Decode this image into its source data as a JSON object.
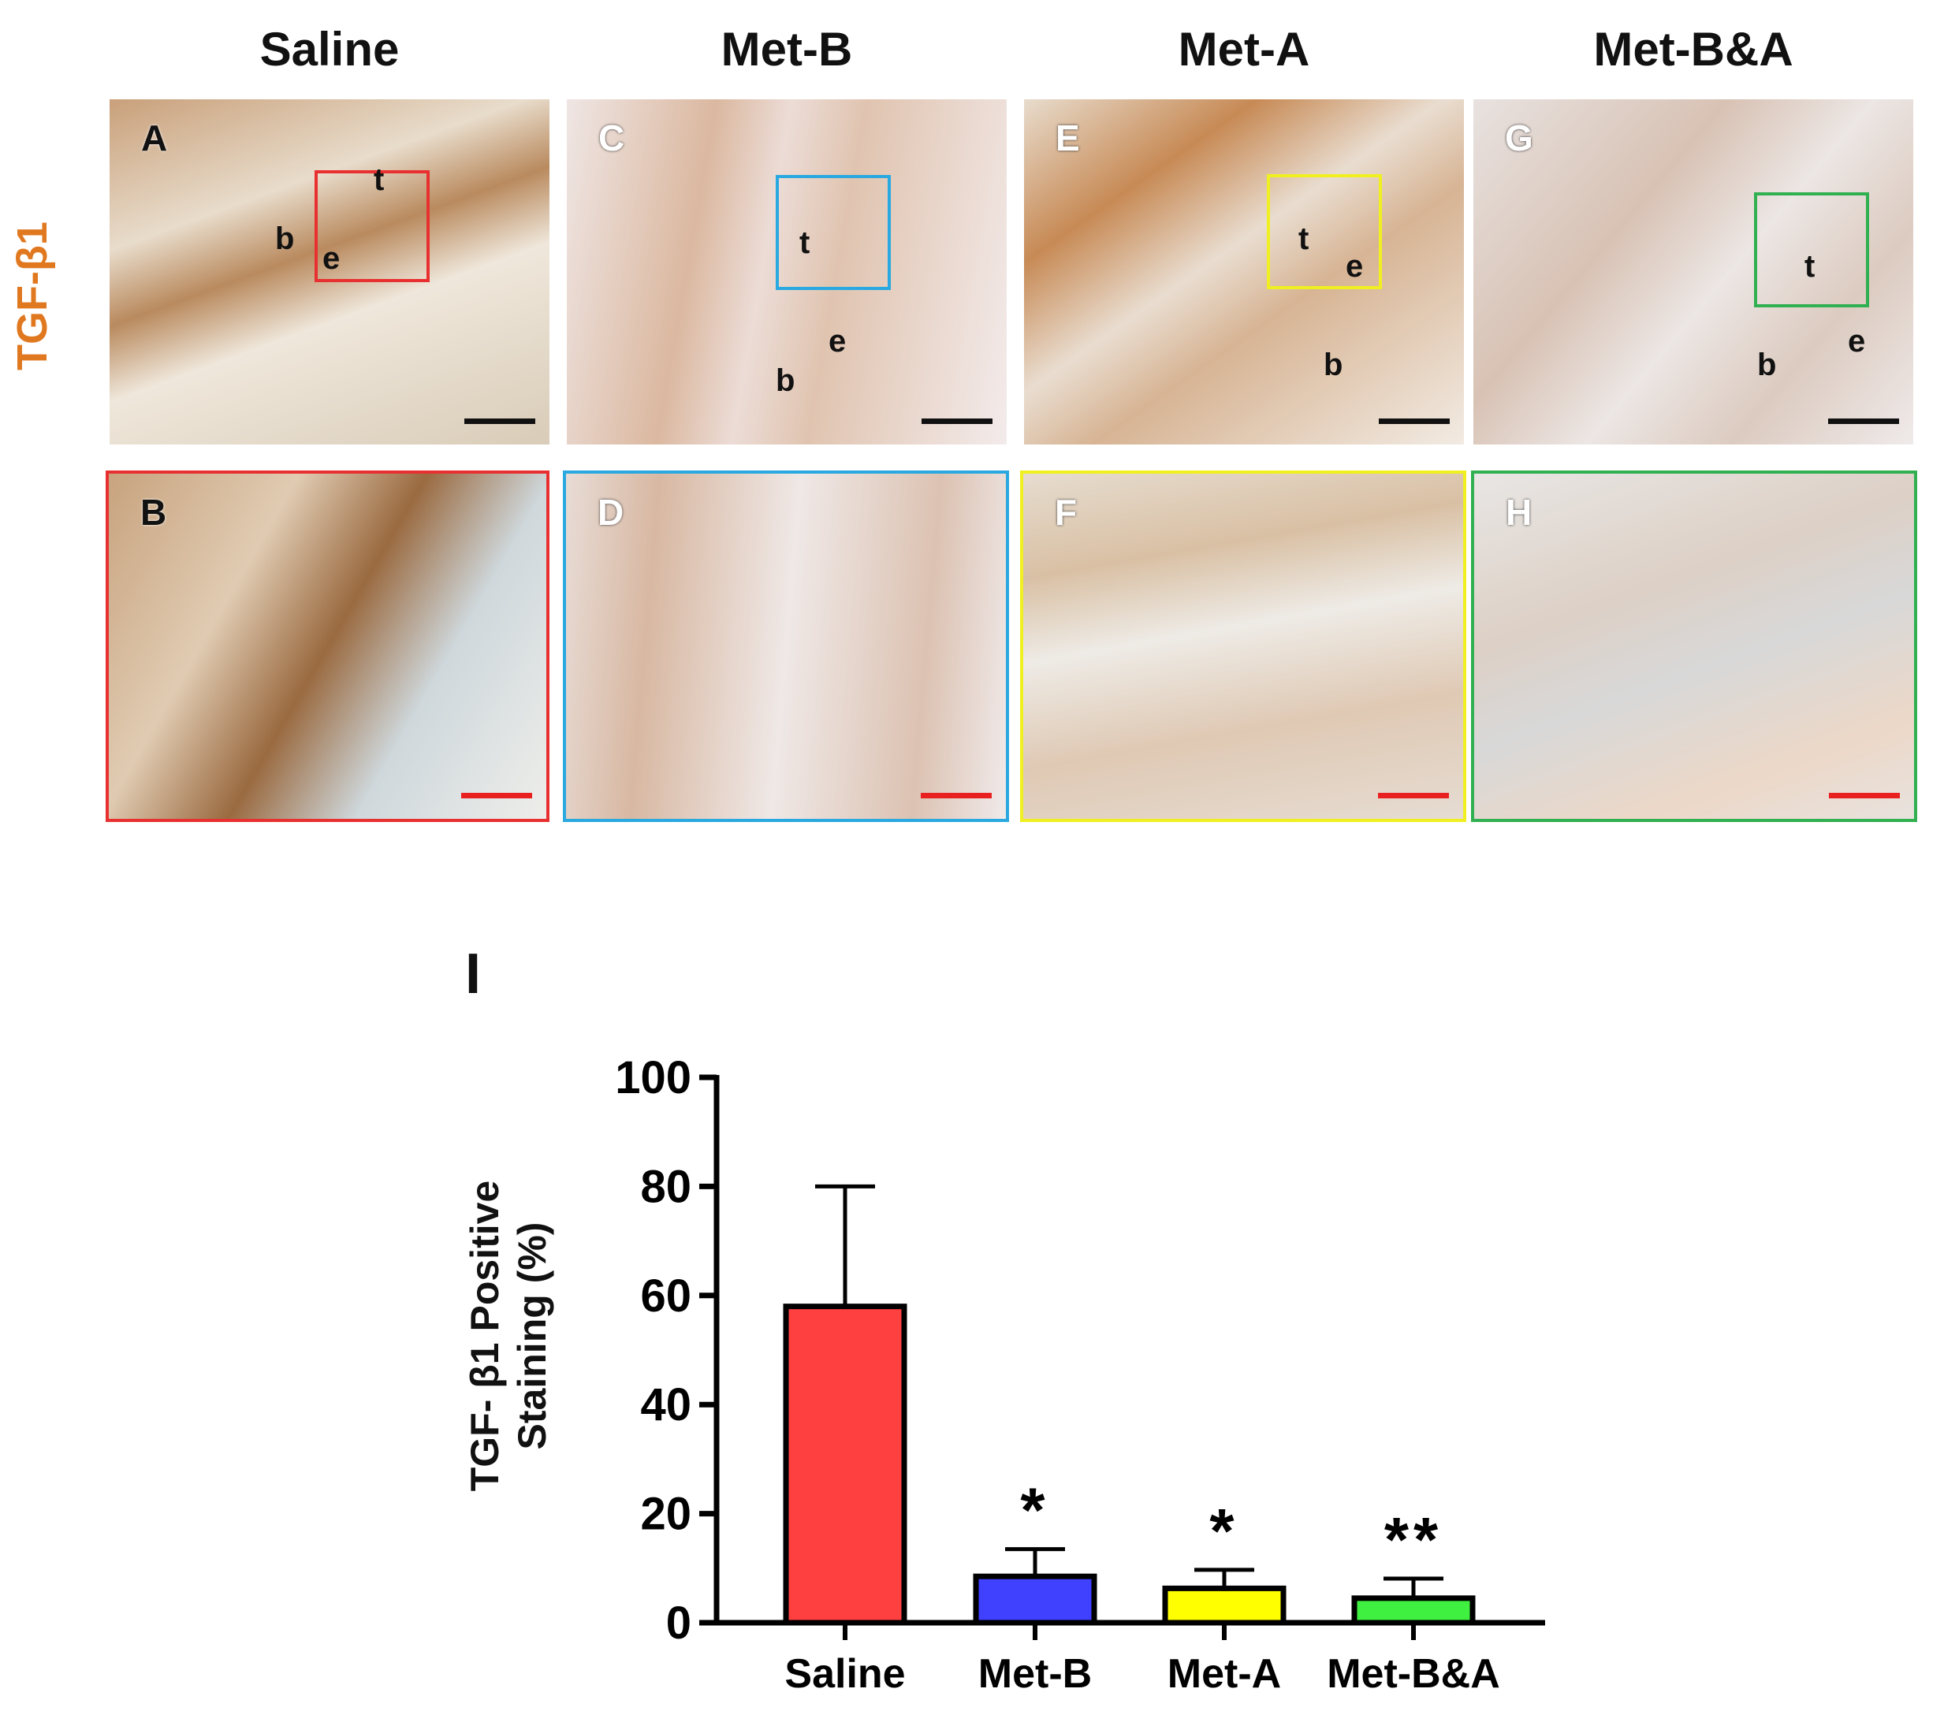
{
  "columns": [
    "Saline",
    "Met-B",
    "Met-A",
    "Met-B&A"
  ],
  "row_label": "TGF-β1",
  "panels_top": [
    {
      "label": "A",
      "marks": [
        "t",
        "b",
        "e"
      ],
      "inset_color": "#e83030"
    },
    {
      "label": "C",
      "marks": [
        "t",
        "e",
        "b"
      ],
      "inset_color": "#2aa8e0"
    },
    {
      "label": "E",
      "marks": [
        "t",
        "e",
        "b"
      ],
      "inset_color": "#f0f020"
    },
    {
      "label": "G",
      "marks": [
        "t",
        "b",
        "e"
      ],
      "inset_color": "#30b050"
    }
  ],
  "panels_bottom": [
    {
      "label": "B",
      "border_color": "#e83030"
    },
    {
      "label": "D",
      "border_color": "#2aa8e0"
    },
    {
      "label": "F",
      "border_color": "#f0f020"
    },
    {
      "label": "H",
      "border_color": "#30b050"
    }
  ],
  "panel_title": "I",
  "chart_data": {
    "type": "bar",
    "title": "",
    "xlabel": "",
    "ylabel_line1": "TGF- β1 Positive",
    "ylabel_line2": "Staining (%)",
    "ylim": [
      0,
      100
    ],
    "yticks": [
      0,
      20,
      40,
      60,
      80,
      100
    ],
    "categories": [
      "Saline",
      "Met-B",
      "Met-A",
      "Met-B&A"
    ],
    "values": [
      58,
      8.5,
      6.3,
      4.5
    ],
    "error_upper": [
      80,
      13.5,
      9.7,
      8.1
    ],
    "colors": [
      "#ff4040",
      "#4040ff",
      "#ffff00",
      "#40f040"
    ],
    "significance": [
      "",
      "*",
      "*",
      "**"
    ],
    "grid": false
  }
}
